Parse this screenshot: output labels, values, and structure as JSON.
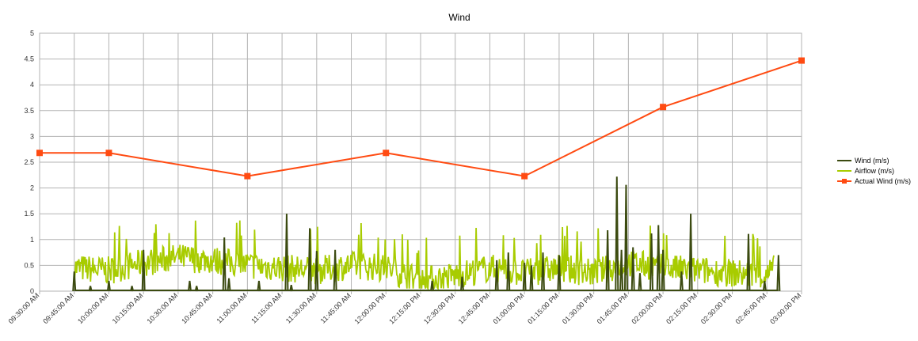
{
  "chart_data": {
    "type": "line",
    "title": "Wind",
    "xlabel": "",
    "ylabel": "",
    "ylim": [
      0,
      5
    ],
    "y_ticks": [
      "0",
      "0.5",
      "1",
      "1.5",
      "2",
      "2.5",
      "3",
      "3.5",
      "4",
      "4.5",
      "5"
    ],
    "x_ticks": [
      "09:30:00 AM",
      "09:45:00 AM",
      "10:00:00 AM",
      "10:15:00 AM",
      "10:30:00 AM",
      "10:45:00 AM",
      "11:00:00 AM",
      "11:15:00 AM",
      "11:30:00 AM",
      "11:45:00 AM",
      "12:00:00 PM",
      "12:15:00 PM",
      "12:30:00 PM",
      "12:45:00 PM",
      "01:00:00 PM",
      "01:15:00 PM",
      "01:30:00 PM",
      "01:45:00 PM",
      "02:00:00 PM",
      "02:15:00 PM",
      "02:30:00 PM",
      "02:45:00 PM",
      "03:00:00 PM"
    ],
    "grid": true,
    "legend_position": "right",
    "series": [
      {
        "name": "Wind (m/s)",
        "color": "#3b4a10",
        "x": [
          "09:45:00 AM",
          "09:52:00 AM",
          "10:00:00 AM",
          "10:10:00 AM",
          "10:15:00 AM",
          "10:35:00 AM",
          "10:38:00 AM",
          "10:50:00 AM",
          "10:52:00 AM",
          "11:05:00 AM",
          "11:17:00 AM",
          "11:19:00 AM",
          "11:27:00 AM",
          "11:30:00 AM",
          "11:38:00 AM",
          "12:20:00 PM",
          "12:33:00 PM",
          "12:48:00 PM",
          "12:53:00 PM",
          "01:00:00 PM",
          "01:03:00 PM",
          "01:08:00 PM",
          "01:15:00 PM",
          "01:36:00 PM",
          "01:40:00 PM",
          "01:42:00 PM",
          "01:44:00 PM",
          "01:47:00 PM",
          "01:50:00 PM",
          "01:55:00 PM",
          "01:58:00 PM",
          "02:00:00 PM",
          "02:08:00 PM",
          "02:12:00 PM",
          "02:37:00 PM",
          "02:44:00 PM",
          "02:50:00 PM"
        ],
        "values": [
          0.38,
          0.1,
          0.2,
          0.1,
          0.8,
          0.2,
          0.1,
          1.04,
          0.25,
          0.2,
          1.5,
          0.12,
          1.22,
          0.78,
          0.8,
          0.2,
          0.28,
          0.6,
          0.75,
          0.55,
          0.5,
          0.75,
          0.7,
          1.18,
          2.22,
          0.8,
          2.06,
          0.85,
          0.35,
          1.12,
          1.28,
          0.8,
          0.38,
          1.5,
          1.11,
          0.2,
          0.7
        ]
      },
      {
        "name": "Airflow (m/s)",
        "color": "#a8cc00",
        "x": [
          "09:45:00 AM",
          "10:00:00 AM",
          "10:15:00 AM",
          "10:30:00 AM",
          "10:45:00 AM",
          "11:00:00 AM",
          "11:15:00 AM",
          "11:30:00 AM",
          "11:45:00 AM",
          "12:00:00 PM",
          "12:15:00 PM",
          "12:30:00 PM",
          "12:45:00 PM",
          "01:00:00 PM",
          "01:15:00 PM",
          "01:30:00 PM",
          "01:45:00 PM",
          "02:00:00 PM",
          "02:15:00 PM",
          "02:30:00 PM",
          "02:45:00 PM",
          "02:48:00 PM"
        ],
        "values": [
          0.45,
          0.4,
          0.55,
          0.65,
          0.6,
          0.5,
          0.45,
          0.4,
          0.5,
          0.45,
          0.2,
          0.3,
          0.45,
          0.35,
          0.45,
          0.35,
          0.55,
          0.45,
          0.4,
          0.35,
          0.3,
          0.45
        ]
      },
      {
        "name": "Actual Wind (m/s)",
        "color": "#ff4b12",
        "x": [
          "09:30:00 AM",
          "10:00:00 AM",
          "11:00:00 AM",
          "12:00:00 PM",
          "01:00:00 PM",
          "02:00:00 PM",
          "03:00:00 PM"
        ],
        "values": [
          2.68,
          2.68,
          2.23,
          2.68,
          2.23,
          3.57,
          4.47
        ]
      }
    ]
  }
}
